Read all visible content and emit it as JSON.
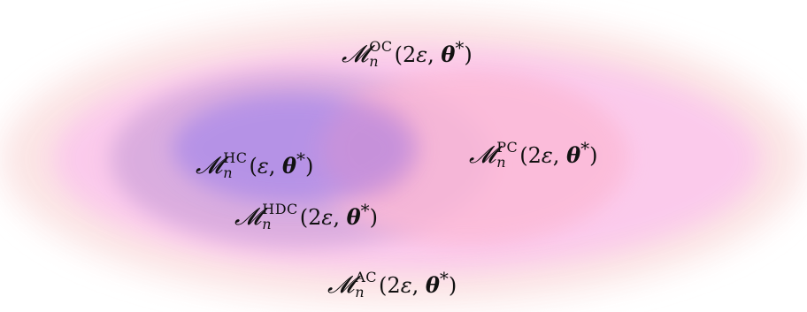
{
  "regions": {
    "oc": {
      "symbol": "𝓜",
      "superscript": "OC",
      "subscript": "n",
      "args_open": "(2",
      "eps": "ε",
      "comma": ", ",
      "theta": "θ",
      "star": "*",
      "args_close": ")",
      "fill": "#f7b3e4"
    },
    "ac": {
      "symbol": "𝓜",
      "superscript": "AC",
      "subscript": "n",
      "args_open": "(2",
      "eps": "ε",
      "comma": ", ",
      "theta": "θ",
      "star": "*",
      "args_close": ")",
      "fill": "#f9d4d9"
    },
    "hc": {
      "symbol": "𝓜",
      "superscript": "HC",
      "subscript": "n",
      "args_open": "(",
      "eps": "ε",
      "comma": ", ",
      "theta": "θ",
      "star": "*",
      "args_close": ")",
      "fill": "#a98ae8"
    },
    "hdc": {
      "symbol": "𝓜",
      "superscript": "HDC",
      "subscript": "n",
      "args_open": "(2",
      "eps": "ε",
      "comma": ", ",
      "theta": "θ",
      "star": "*",
      "args_close": ")",
      "fill": "#caa1dd"
    },
    "pc": {
      "symbol": "𝓜",
      "superscript": "PC",
      "subscript": "n",
      "args_open": "(2",
      "eps": "ε",
      "comma": ", ",
      "theta": "θ",
      "star": "*",
      "args_close": ")",
      "fill": "#fbb6d3"
    }
  }
}
